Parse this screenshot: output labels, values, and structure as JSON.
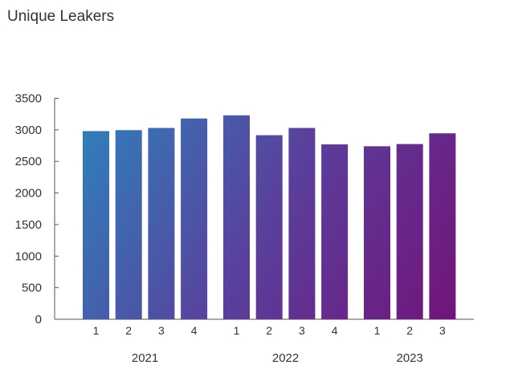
{
  "chart_data": {
    "type": "bar",
    "title": "Unique Leakers",
    "xlabel": "",
    "ylabel": "",
    "ylim": [
      0,
      3500
    ],
    "yticks": [
      0,
      500,
      1000,
      1500,
      2000,
      2500,
      3000,
      3500
    ],
    "groups": [
      {
        "label": "2021",
        "categories": [
          "1",
          "2",
          "3",
          "4"
        ],
        "values": [
          2980,
          2995,
          3030,
          3180
        ]
      },
      {
        "label": "2022",
        "categories": [
          "1",
          "2",
          "3",
          "4"
        ],
        "values": [
          3230,
          2915,
          3030,
          2770
        ]
      },
      {
        "label": "2023",
        "categories": [
          "1",
          "2",
          "3"
        ],
        "values": [
          2740,
          2775,
          2945
        ]
      }
    ],
    "grid": false,
    "colors": {
      "start": "#2f80bb",
      "mid": "#5a3f9c",
      "end": "#72137a"
    }
  }
}
